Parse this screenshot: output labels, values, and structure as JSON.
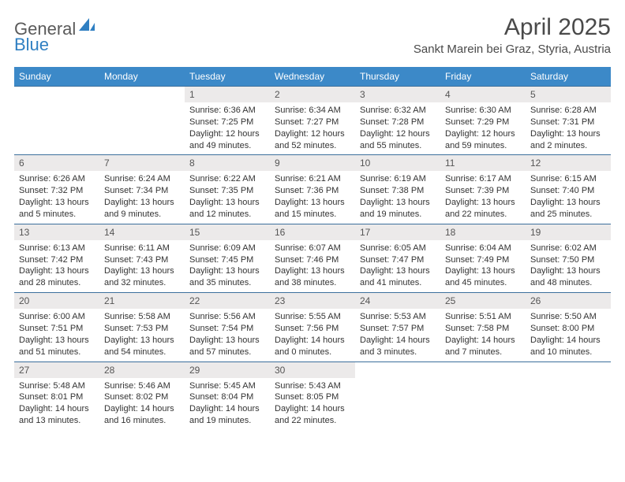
{
  "logo": {
    "text1": "General",
    "text2": "Blue",
    "icon_color": "#2f7fc2"
  },
  "title": "April 2025",
  "location": "Sankt Marein bei Graz, Styria, Austria",
  "header_bg": "#3c89c8",
  "header_text_color": "#ffffff",
  "row_border_color": "#3c6f9c",
  "daynum_bg": "#eceaea",
  "day_headers": [
    "Sunday",
    "Monday",
    "Tuesday",
    "Wednesday",
    "Thursday",
    "Friday",
    "Saturday"
  ],
  "weeks": [
    [
      {
        "empty": true
      },
      {
        "empty": true
      },
      {
        "num": "1",
        "sunrise": "Sunrise: 6:36 AM",
        "sunset": "Sunset: 7:25 PM",
        "daylight1": "Daylight: 12 hours",
        "daylight2": "and 49 minutes."
      },
      {
        "num": "2",
        "sunrise": "Sunrise: 6:34 AM",
        "sunset": "Sunset: 7:27 PM",
        "daylight1": "Daylight: 12 hours",
        "daylight2": "and 52 minutes."
      },
      {
        "num": "3",
        "sunrise": "Sunrise: 6:32 AM",
        "sunset": "Sunset: 7:28 PM",
        "daylight1": "Daylight: 12 hours",
        "daylight2": "and 55 minutes."
      },
      {
        "num": "4",
        "sunrise": "Sunrise: 6:30 AM",
        "sunset": "Sunset: 7:29 PM",
        "daylight1": "Daylight: 12 hours",
        "daylight2": "and 59 minutes."
      },
      {
        "num": "5",
        "sunrise": "Sunrise: 6:28 AM",
        "sunset": "Sunset: 7:31 PM",
        "daylight1": "Daylight: 13 hours",
        "daylight2": "and 2 minutes."
      }
    ],
    [
      {
        "num": "6",
        "sunrise": "Sunrise: 6:26 AM",
        "sunset": "Sunset: 7:32 PM",
        "daylight1": "Daylight: 13 hours",
        "daylight2": "and 5 minutes."
      },
      {
        "num": "7",
        "sunrise": "Sunrise: 6:24 AM",
        "sunset": "Sunset: 7:34 PM",
        "daylight1": "Daylight: 13 hours",
        "daylight2": "and 9 minutes."
      },
      {
        "num": "8",
        "sunrise": "Sunrise: 6:22 AM",
        "sunset": "Sunset: 7:35 PM",
        "daylight1": "Daylight: 13 hours",
        "daylight2": "and 12 minutes."
      },
      {
        "num": "9",
        "sunrise": "Sunrise: 6:21 AM",
        "sunset": "Sunset: 7:36 PM",
        "daylight1": "Daylight: 13 hours",
        "daylight2": "and 15 minutes."
      },
      {
        "num": "10",
        "sunrise": "Sunrise: 6:19 AM",
        "sunset": "Sunset: 7:38 PM",
        "daylight1": "Daylight: 13 hours",
        "daylight2": "and 19 minutes."
      },
      {
        "num": "11",
        "sunrise": "Sunrise: 6:17 AM",
        "sunset": "Sunset: 7:39 PM",
        "daylight1": "Daylight: 13 hours",
        "daylight2": "and 22 minutes."
      },
      {
        "num": "12",
        "sunrise": "Sunrise: 6:15 AM",
        "sunset": "Sunset: 7:40 PM",
        "daylight1": "Daylight: 13 hours",
        "daylight2": "and 25 minutes."
      }
    ],
    [
      {
        "num": "13",
        "sunrise": "Sunrise: 6:13 AM",
        "sunset": "Sunset: 7:42 PM",
        "daylight1": "Daylight: 13 hours",
        "daylight2": "and 28 minutes."
      },
      {
        "num": "14",
        "sunrise": "Sunrise: 6:11 AM",
        "sunset": "Sunset: 7:43 PM",
        "daylight1": "Daylight: 13 hours",
        "daylight2": "and 32 minutes."
      },
      {
        "num": "15",
        "sunrise": "Sunrise: 6:09 AM",
        "sunset": "Sunset: 7:45 PM",
        "daylight1": "Daylight: 13 hours",
        "daylight2": "and 35 minutes."
      },
      {
        "num": "16",
        "sunrise": "Sunrise: 6:07 AM",
        "sunset": "Sunset: 7:46 PM",
        "daylight1": "Daylight: 13 hours",
        "daylight2": "and 38 minutes."
      },
      {
        "num": "17",
        "sunrise": "Sunrise: 6:05 AM",
        "sunset": "Sunset: 7:47 PM",
        "daylight1": "Daylight: 13 hours",
        "daylight2": "and 41 minutes."
      },
      {
        "num": "18",
        "sunrise": "Sunrise: 6:04 AM",
        "sunset": "Sunset: 7:49 PM",
        "daylight1": "Daylight: 13 hours",
        "daylight2": "and 45 minutes."
      },
      {
        "num": "19",
        "sunrise": "Sunrise: 6:02 AM",
        "sunset": "Sunset: 7:50 PM",
        "daylight1": "Daylight: 13 hours",
        "daylight2": "and 48 minutes."
      }
    ],
    [
      {
        "num": "20",
        "sunrise": "Sunrise: 6:00 AM",
        "sunset": "Sunset: 7:51 PM",
        "daylight1": "Daylight: 13 hours",
        "daylight2": "and 51 minutes."
      },
      {
        "num": "21",
        "sunrise": "Sunrise: 5:58 AM",
        "sunset": "Sunset: 7:53 PM",
        "daylight1": "Daylight: 13 hours",
        "daylight2": "and 54 minutes."
      },
      {
        "num": "22",
        "sunrise": "Sunrise: 5:56 AM",
        "sunset": "Sunset: 7:54 PM",
        "daylight1": "Daylight: 13 hours",
        "daylight2": "and 57 minutes."
      },
      {
        "num": "23",
        "sunrise": "Sunrise: 5:55 AM",
        "sunset": "Sunset: 7:56 PM",
        "daylight1": "Daylight: 14 hours",
        "daylight2": "and 0 minutes."
      },
      {
        "num": "24",
        "sunrise": "Sunrise: 5:53 AM",
        "sunset": "Sunset: 7:57 PM",
        "daylight1": "Daylight: 14 hours",
        "daylight2": "and 3 minutes."
      },
      {
        "num": "25",
        "sunrise": "Sunrise: 5:51 AM",
        "sunset": "Sunset: 7:58 PM",
        "daylight1": "Daylight: 14 hours",
        "daylight2": "and 7 minutes."
      },
      {
        "num": "26",
        "sunrise": "Sunrise: 5:50 AM",
        "sunset": "Sunset: 8:00 PM",
        "daylight1": "Daylight: 14 hours",
        "daylight2": "and 10 minutes."
      }
    ],
    [
      {
        "num": "27",
        "sunrise": "Sunrise: 5:48 AM",
        "sunset": "Sunset: 8:01 PM",
        "daylight1": "Daylight: 14 hours",
        "daylight2": "and 13 minutes."
      },
      {
        "num": "28",
        "sunrise": "Sunrise: 5:46 AM",
        "sunset": "Sunset: 8:02 PM",
        "daylight1": "Daylight: 14 hours",
        "daylight2": "and 16 minutes."
      },
      {
        "num": "29",
        "sunrise": "Sunrise: 5:45 AM",
        "sunset": "Sunset: 8:04 PM",
        "daylight1": "Daylight: 14 hours",
        "daylight2": "and 19 minutes."
      },
      {
        "num": "30",
        "sunrise": "Sunrise: 5:43 AM",
        "sunset": "Sunset: 8:05 PM",
        "daylight1": "Daylight: 14 hours",
        "daylight2": "and 22 minutes."
      },
      {
        "empty": true
      },
      {
        "empty": true
      },
      {
        "empty": true
      }
    ]
  ]
}
